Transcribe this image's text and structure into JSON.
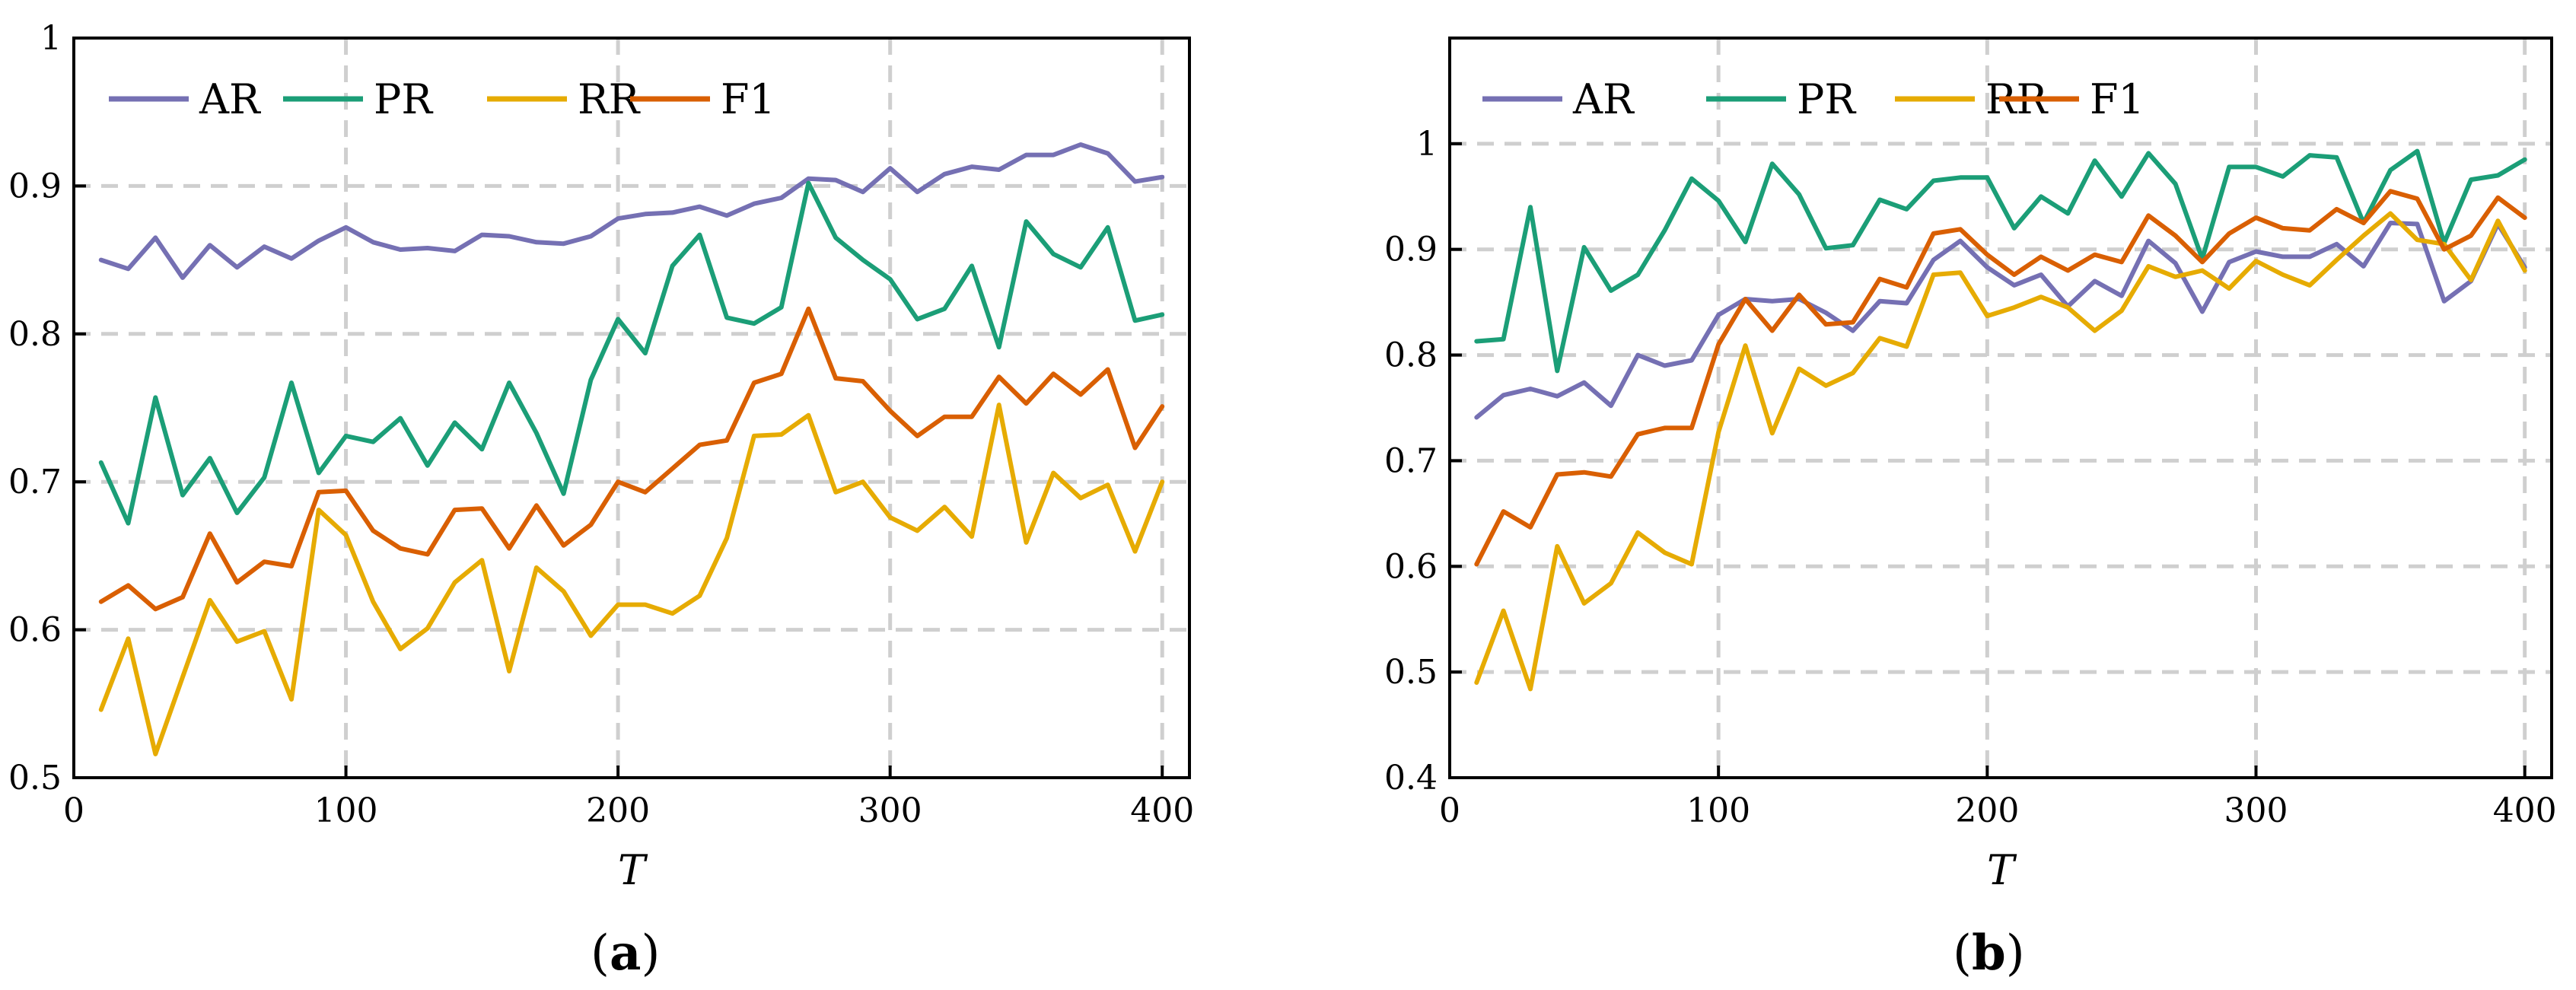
{
  "panels": {
    "a": {
      "label_open": "(",
      "label_letter": "a",
      "label_close": ")"
    },
    "b": {
      "label_open": "(",
      "label_letter": "b",
      "label_close": ")"
    }
  },
  "chart_data": [
    {
      "type": "line",
      "panel": "a",
      "xlabel": "T",
      "ylabel": "",
      "xlim": [
        0,
        410
      ],
      "ylim": [
        0.5,
        1.0
      ],
      "xticks": [
        0,
        100,
        200,
        300,
        400
      ],
      "yticks": [
        0.5,
        0.6,
        0.7,
        0.8,
        0.9,
        1.0
      ],
      "ytick_labels": [
        "0.5",
        "0.6",
        "0.7",
        "0.8",
        "0.9",
        "1"
      ],
      "grid": true,
      "legend_position": "top-left, horizontal",
      "x": [
        10,
        20,
        30,
        40,
        50,
        60,
        70,
        80,
        90,
        100,
        110,
        120,
        130,
        140,
        150,
        160,
        170,
        180,
        190,
        200,
        210,
        220,
        230,
        240,
        250,
        260,
        270,
        280,
        290,
        300,
        310,
        320,
        330,
        340,
        350,
        360,
        370,
        380,
        390,
        400
      ],
      "series": [
        {
          "name": "AR",
          "color": "#7570b3",
          "values": [
            0.85,
            0.844,
            0.865,
            0.838,
            0.86,
            0.845,
            0.859,
            0.851,
            0.863,
            0.872,
            0.862,
            0.857,
            0.858,
            0.856,
            0.867,
            0.866,
            0.862,
            0.861,
            0.866,
            0.878,
            0.881,
            0.882,
            0.886,
            0.88,
            0.888,
            0.892,
            0.905,
            0.904,
            0.896,
            0.912,
            0.896,
            0.908,
            0.913,
            0.911,
            0.921,
            0.921,
            0.928,
            0.922,
            0.903,
            0.906
          ]
        },
        {
          "name": "PR",
          "color": "#1b9e77",
          "values": [
            0.713,
            0.672,
            0.757,
            0.691,
            0.716,
            0.679,
            0.703,
            0.767,
            0.706,
            0.731,
            0.727,
            0.743,
            0.711,
            0.74,
            0.722,
            0.767,
            0.733,
            0.692,
            0.769,
            0.81,
            0.787,
            0.846,
            0.867,
            0.811,
            0.807,
            0.818,
            0.902,
            0.865,
            0.85,
            0.837,
            0.81,
            0.817,
            0.846,
            0.791,
            0.876,
            0.854,
            0.845,
            0.872,
            0.809,
            0.813
          ]
        },
        {
          "name": "RR",
          "color": "#e6ab02",
          "values": [
            0.546,
            0.594,
            0.516,
            0.568,
            0.62,
            0.592,
            0.599,
            0.553,
            0.681,
            0.664,
            0.619,
            0.587,
            0.601,
            0.632,
            0.647,
            0.572,
            0.642,
            0.626,
            0.596,
            0.617,
            0.617,
            0.611,
            0.623,
            0.662,
            0.731,
            0.732,
            0.745,
            0.693,
            0.7,
            0.676,
            0.667,
            0.683,
            0.663,
            0.752,
            0.659,
            0.706,
            0.689,
            0.698,
            0.653,
            0.7
          ]
        },
        {
          "name": "F1",
          "color": "#d95f02",
          "values": [
            0.619,
            0.63,
            0.614,
            0.622,
            0.665,
            0.632,
            0.646,
            0.643,
            0.693,
            0.694,
            0.667,
            0.655,
            0.651,
            0.681,
            0.682,
            0.655,
            0.684,
            0.657,
            0.671,
            0.7,
            0.693,
            0.709,
            0.725,
            0.728,
            0.767,
            0.773,
            0.817,
            0.77,
            0.768,
            0.748,
            0.731,
            0.744,
            0.744,
            0.771,
            0.753,
            0.773,
            0.759,
            0.776,
            0.723,
            0.751
          ]
        }
      ]
    },
    {
      "type": "line",
      "panel": "b",
      "xlabel": "T",
      "ylabel": "",
      "xlim": [
        0,
        410
      ],
      "ylim": [
        0.4,
        1.1
      ],
      "xticks": [
        0,
        100,
        200,
        300,
        400
      ],
      "yticks": [
        0.4,
        0.5,
        0.6,
        0.7,
        0.8,
        0.9,
        1.0
      ],
      "ytick_labels": [
        "0.4",
        "0.5",
        "0.6",
        "0.7",
        "0.8",
        "0.9",
        "1"
      ],
      "grid": true,
      "legend_position": "top-left, horizontal",
      "x": [
        10,
        20,
        30,
        40,
        50,
        60,
        70,
        80,
        90,
        100,
        110,
        120,
        130,
        140,
        150,
        160,
        170,
        180,
        190,
        200,
        210,
        220,
        230,
        240,
        250,
        260,
        270,
        280,
        290,
        300,
        310,
        320,
        330,
        340,
        350,
        360,
        370,
        380,
        390,
        400
      ],
      "series": [
        {
          "name": "AR",
          "color": "#7570b3",
          "values": [
            0.741,
            0.762,
            0.768,
            0.761,
            0.774,
            0.752,
            0.8,
            0.79,
            0.795,
            0.838,
            0.853,
            0.851,
            0.853,
            0.84,
            0.823,
            0.851,
            0.849,
            0.89,
            0.908,
            0.883,
            0.866,
            0.876,
            0.846,
            0.87,
            0.856,
            0.908,
            0.887,
            0.841,
            0.888,
            0.898,
            0.893,
            0.893,
            0.905,
            0.884,
            0.925,
            0.924,
            0.851,
            0.87,
            0.924,
            0.883
          ]
        },
        {
          "name": "PR",
          "color": "#1b9e77",
          "values": [
            0.813,
            0.815,
            0.94,
            0.785,
            0.902,
            0.861,
            0.876,
            0.918,
            0.967,
            0.946,
            0.907,
            0.981,
            0.952,
            0.901,
            0.904,
            0.947,
            0.938,
            0.965,
            0.968,
            0.968,
            0.92,
            0.95,
            0.934,
            0.984,
            0.95,
            0.991,
            0.962,
            0.891,
            0.978,
            0.978,
            0.969,
            0.989,
            0.987,
            0.925,
            0.975,
            0.993,
            0.906,
            0.966,
            0.97,
            0.985
          ]
        },
        {
          "name": "RR",
          "color": "#e6ab02",
          "values": [
            0.49,
            0.558,
            0.484,
            0.619,
            0.565,
            0.584,
            0.632,
            0.613,
            0.602,
            0.727,
            0.809,
            0.726,
            0.787,
            0.771,
            0.783,
            0.816,
            0.808,
            0.876,
            0.878,
            0.837,
            0.845,
            0.855,
            0.845,
            0.823,
            0.842,
            0.884,
            0.874,
            0.88,
            0.863,
            0.889,
            0.876,
            0.866,
            0.89,
            0.913,
            0.934,
            0.909,
            0.905,
            0.871,
            0.927,
            0.88
          ]
        },
        {
          "name": "F1",
          "color": "#d95f02",
          "values": [
            0.602,
            0.652,
            0.637,
            0.687,
            0.689,
            0.685,
            0.725,
            0.731,
            0.731,
            0.81,
            0.853,
            0.823,
            0.857,
            0.829,
            0.831,
            0.872,
            0.864,
            0.915,
            0.919,
            0.895,
            0.876,
            0.893,
            0.88,
            0.895,
            0.888,
            0.932,
            0.913,
            0.888,
            0.915,
            0.93,
            0.92,
            0.918,
            0.938,
            0.925,
            0.955,
            0.948,
            0.9,
            0.913,
            0.949,
            0.93
          ]
        }
      ]
    }
  ]
}
